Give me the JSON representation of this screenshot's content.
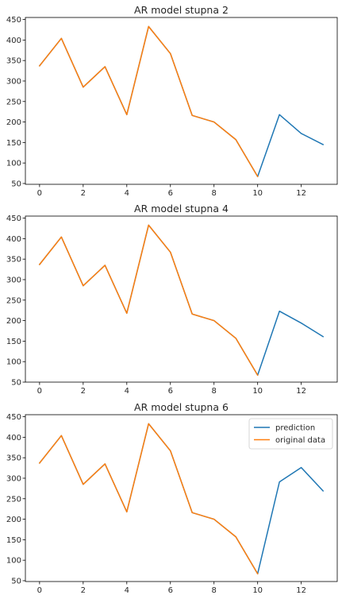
{
  "chart_data": [
    {
      "type": "line",
      "title": "AR model stupna 2",
      "xlabel": "",
      "ylabel": "",
      "xlim": [
        -0.65,
        13.65
      ],
      "ylim": [
        48,
        455
      ],
      "xticks": [
        0,
        2,
        4,
        6,
        8,
        10,
        12
      ],
      "yticks": [
        50,
        100,
        150,
        200,
        250,
        300,
        350,
        400,
        450
      ],
      "legend": false,
      "series": [
        {
          "color": "#1f77b4",
          "x": [
            0,
            1,
            2,
            3,
            4,
            5,
            6,
            7,
            8,
            9,
            10,
            11,
            12,
            13
          ],
          "y": [
            337,
            404,
            285,
            335,
            218,
            433,
            367,
            216,
            200,
            157,
            67,
            218,
            172,
            145
          ]
        },
        {
          "color": "#ff7f0e",
          "x": [
            0,
            1,
            2,
            3,
            4,
            5,
            6,
            7,
            8,
            9,
            10
          ],
          "y": [
            337,
            404,
            285,
            335,
            218,
            433,
            367,
            216,
            200,
            157,
            67
          ]
        }
      ]
    },
    {
      "type": "line",
      "title": "AR model stupna 4",
      "xlabel": "",
      "ylabel": "",
      "xlim": [
        -0.65,
        13.65
      ],
      "ylim": [
        50,
        455
      ],
      "xticks": [
        0,
        2,
        4,
        6,
        8,
        10,
        12
      ],
      "yticks": [
        50,
        100,
        150,
        200,
        250,
        300,
        350,
        400,
        450
      ],
      "legend": false,
      "series": [
        {
          "color": "#1f77b4",
          "x": [
            0,
            1,
            2,
            3,
            4,
            5,
            6,
            7,
            8,
            9,
            10,
            11,
            12,
            13
          ],
          "y": [
            337,
            404,
            285,
            335,
            218,
            433,
            367,
            216,
            200,
            157,
            67,
            223,
            194,
            161
          ]
        },
        {
          "color": "#ff7f0e",
          "x": [
            0,
            1,
            2,
            3,
            4,
            5,
            6,
            7,
            8,
            9,
            10
          ],
          "y": [
            337,
            404,
            285,
            335,
            218,
            433,
            367,
            216,
            200,
            157,
            67
          ]
        }
      ]
    },
    {
      "type": "line",
      "title": "AR model stupna 6",
      "xlabel": "",
      "ylabel": "",
      "xlim": [
        -0.65,
        13.65
      ],
      "ylim": [
        48,
        455
      ],
      "xticks": [
        0,
        2,
        4,
        6,
        8,
        10,
        12
      ],
      "yticks": [
        50,
        100,
        150,
        200,
        250,
        300,
        350,
        400,
        450
      ],
      "legend": true,
      "legend_position": "top-right",
      "series": [
        {
          "name": "prediction",
          "color": "#1f77b4",
          "x": [
            0,
            1,
            2,
            3,
            4,
            5,
            6,
            7,
            8,
            9,
            10,
            11,
            12,
            13
          ],
          "y": [
            337,
            404,
            285,
            335,
            218,
            433,
            367,
            216,
            200,
            157,
            67,
            291,
            326,
            269
          ]
        },
        {
          "name": "original data",
          "color": "#ff7f0e",
          "x": [
            0,
            1,
            2,
            3,
            4,
            5,
            6,
            7,
            8,
            9,
            10
          ],
          "y": [
            337,
            404,
            285,
            335,
            218,
            433,
            367,
            216,
            200,
            157,
            67
          ]
        }
      ]
    }
  ]
}
